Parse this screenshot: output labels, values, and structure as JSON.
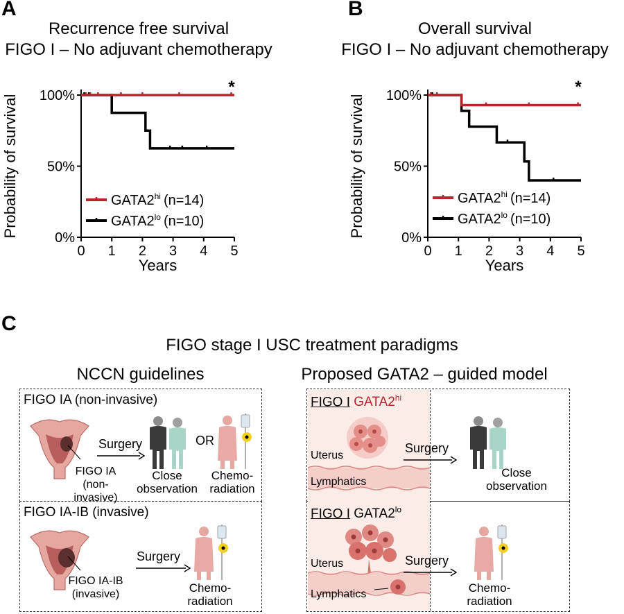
{
  "panels": {
    "a": {
      "letter": "A"
    },
    "b": {
      "letter": "B"
    },
    "c": {
      "letter": "C"
    }
  },
  "chart_data": [
    {
      "type": "line",
      "step": true,
      "title": "Recurrence free survival",
      "subtitle": "FIGO I – No adjuvant chemotherapy",
      "xlabel": "Years",
      "ylabel": "Probability of survival",
      "xlim": [
        0,
        5
      ],
      "ylim": [
        0,
        100
      ],
      "x_ticks": [
        "0",
        "1",
        "2",
        "3",
        "4",
        "5"
      ],
      "y_ticks": [
        "0%",
        "50%",
        "100%"
      ],
      "significance": "*",
      "legend_position": "bottom-left",
      "series": [
        {
          "name": "GATA2",
          "sup": "hi",
          "n_label": "(n=14)",
          "color": "#b5262e",
          "x": [
            0,
            5
          ],
          "y": [
            100,
            100
          ],
          "censor_x": [
            0.15,
            0.3,
            0.55,
            1.3,
            2.0,
            3.2,
            4.9
          ]
        },
        {
          "name": "GATA2",
          "sup": "lo",
          "n_label": "(n=10)",
          "color": "#000000",
          "x": [
            0,
            1,
            2.1,
            2.25,
            5
          ],
          "y": [
            100,
            87.5,
            75,
            62.5,
            62.5
          ],
          "censor_x": [
            0.1,
            0.25,
            2.9,
            3.3,
            4.1
          ]
        }
      ]
    },
    {
      "type": "line",
      "step": true,
      "title": "Overall survival",
      "subtitle": "FIGO I – No adjuvant chemotherapy",
      "xlabel": "Years",
      "ylabel": "Probability of survival",
      "xlim": [
        0,
        5
      ],
      "ylim": [
        0,
        100
      ],
      "x_ticks": [
        "0",
        "1",
        "2",
        "3",
        "4",
        "5"
      ],
      "y_ticks": [
        "0%",
        "50%",
        "100%"
      ],
      "significance": "*",
      "legend_position": "bottom-left",
      "series": [
        {
          "name": "GATA2",
          "sup": "hi",
          "n_label": "(n=14)",
          "color": "#b5262e",
          "x": [
            0,
            1.1,
            5
          ],
          "y": [
            100,
            92.9,
            92.9
          ],
          "censor_x": [
            0.1,
            0.3,
            1.9,
            3.3,
            4.9
          ]
        },
        {
          "name": "GATA2",
          "sup": "lo",
          "n_label": "(n=10)",
          "color": "#000000",
          "x": [
            0,
            1.1,
            1.35,
            2.25,
            3.15,
            3.3,
            5
          ],
          "y": [
            100,
            88.9,
            77.8,
            66.7,
            53.3,
            40,
            40
          ],
          "censor_x": [
            0.15,
            2.6,
            4.1
          ]
        }
      ]
    }
  ],
  "panel_c": {
    "title": "FIGO stage I USC treatment paradigms",
    "left_header": "NCCN guidelines",
    "right_header": "Proposed GATA2 – guided model",
    "left_top": {
      "label": "FIGO IA (non-invasive)",
      "surgery": "Surgery",
      "or_text": "OR",
      "tumor_line1": "FIGO IA",
      "tumor_line2": "(non-invasive)",
      "outcome1_line1": "Close",
      "outcome1_line2": "observation",
      "outcome2_line1": "Chemo-",
      "outcome2_line2": "radiation"
    },
    "left_bottom": {
      "label": "FIGO IA-IB (invasive)",
      "surgery": "Surgery",
      "tumor_line1": "FIGO IA-IB",
      "tumor_line2": "(invasive)",
      "outcome_line1": "Chemo-",
      "outcome_line2": "radiation"
    },
    "right_top": {
      "figo": "FIGO I",
      "gata": "GATA2",
      "sup": "hi",
      "uterus": "Uterus",
      "lymphatics": "Lymphatics",
      "surgery": "Surgery",
      "outcome_line1": "Close",
      "outcome_line2": "observation"
    },
    "right_bottom": {
      "figo": "FIGO I",
      "gata": "GATA2",
      "sup": "lo",
      "uterus": "Uterus",
      "lymphatics": "Lymphatics",
      "surgery": "Surgery",
      "outcome_line1": "Chemo-",
      "outcome_line2": "radiation"
    },
    "colors": {
      "hi_red": "#b5262e",
      "tissue_pink": "#f6dcd8",
      "gown_pink": "#e9a9a5"
    }
  }
}
